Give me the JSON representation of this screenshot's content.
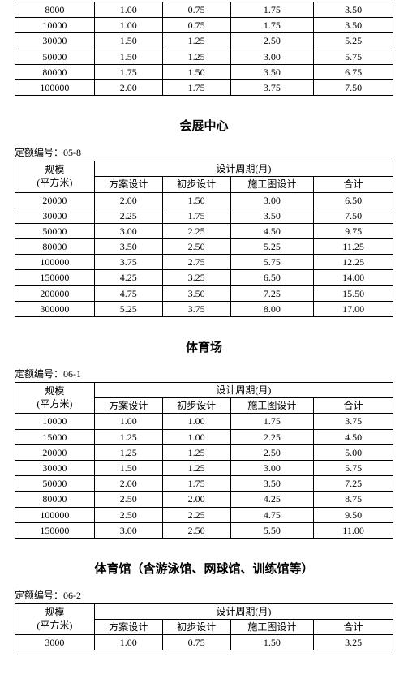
{
  "labels": {
    "header_period": "设计周期(月)",
    "header_scale_l1": "规模",
    "header_scale_l2": "(平方米)",
    "col_a": "方案设计",
    "col_b": "初步设计",
    "col_c": "施工图设计",
    "col_d": "合计",
    "quota_prefix": "定额编号："
  },
  "top_fragment_rows": [
    [
      "8000",
      "1.00",
      "0.75",
      "1.75",
      "3.50"
    ],
    [
      "10000",
      "1.00",
      "0.75",
      "1.75",
      "3.50"
    ],
    [
      "30000",
      "1.50",
      "1.25",
      "2.50",
      "5.25"
    ],
    [
      "50000",
      "1.50",
      "1.25",
      "3.00",
      "5.75"
    ],
    [
      "80000",
      "1.75",
      "1.50",
      "3.50",
      "6.75"
    ],
    [
      "100000",
      "2.00",
      "1.75",
      "3.75",
      "7.50"
    ]
  ],
  "sections": [
    {
      "title": "会展中心",
      "quota": "05-8",
      "rows": [
        [
          "20000",
          "2.00",
          "1.50",
          "3.00",
          "6.50"
        ],
        [
          "30000",
          "2.25",
          "1.75",
          "3.50",
          "7.50"
        ],
        [
          "50000",
          "3.00",
          "2.25",
          "4.50",
          "9.75"
        ],
        [
          "80000",
          "3.50",
          "2.50",
          "5.25",
          "11.25"
        ],
        [
          "100000",
          "3.75",
          "2.75",
          "5.75",
          "12.25"
        ],
        [
          "150000",
          "4.25",
          "3.25",
          "6.50",
          "14.00"
        ],
        [
          "200000",
          "4.75",
          "3.50",
          "7.25",
          "15.50"
        ],
        [
          "300000",
          "5.25",
          "3.75",
          "8.00",
          "17.00"
        ]
      ]
    },
    {
      "title": "体育场",
      "quota": "06-1",
      "rows": [
        [
          "10000",
          "1.00",
          "1.00",
          "1.75",
          "3.75"
        ],
        [
          "15000",
          "1.25",
          "1.00",
          "2.25",
          "4.50"
        ],
        [
          "20000",
          "1.25",
          "1.25",
          "2.50",
          "5.00"
        ],
        [
          "30000",
          "1.50",
          "1.25",
          "3.00",
          "5.75"
        ],
        [
          "50000",
          "2.00",
          "1.75",
          "3.50",
          "7.25"
        ],
        [
          "80000",
          "2.50",
          "2.00",
          "4.25",
          "8.75"
        ],
        [
          "100000",
          "2.50",
          "2.25",
          "4.75",
          "9.50"
        ],
        [
          "150000",
          "3.00",
          "2.50",
          "5.50",
          "11.00"
        ]
      ]
    },
    {
      "title": "体育馆（含游泳馆、网球馆、训练馆等）",
      "quota": "06-2",
      "rows": [
        [
          "3000",
          "1.00",
          "0.75",
          "1.50",
          "3.25"
        ]
      ]
    }
  ]
}
